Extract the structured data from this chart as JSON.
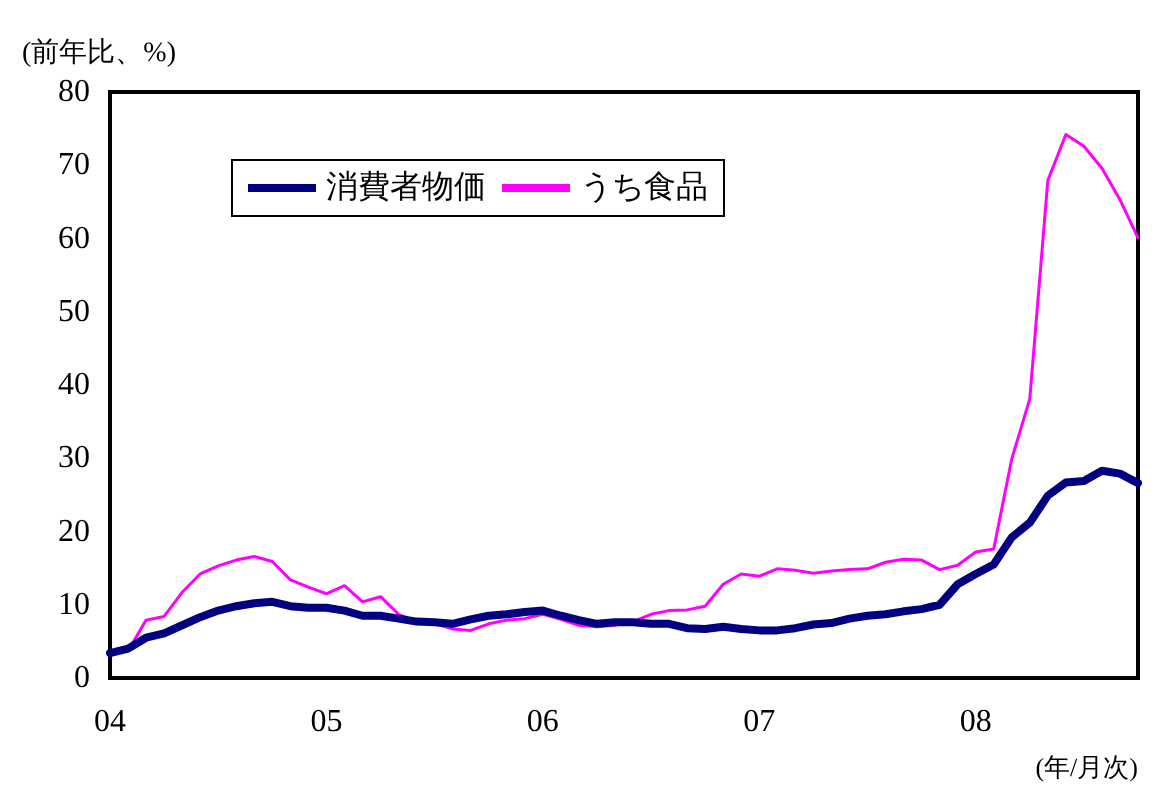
{
  "chart_data": {
    "type": "line",
    "ylabel": "(前年比、%)",
    "xlabel": "(年/月次)",
    "categories": [
      "04",
      null,
      null,
      null,
      null,
      null,
      null,
      null,
      null,
      null,
      null,
      null,
      "05",
      null,
      null,
      null,
      null,
      null,
      null,
      null,
      null,
      null,
      null,
      null,
      "06",
      null,
      null,
      null,
      null,
      null,
      null,
      null,
      null,
      null,
      null,
      null,
      "07",
      null,
      null,
      null,
      null,
      null,
      null,
      null,
      null,
      null,
      null,
      null,
      "08",
      null,
      null,
      null,
      null,
      null,
      null,
      null,
      null,
      null
    ],
    "series": [
      {
        "name": "消費者物価",
        "color": "#000080",
        "values": [
          3.4,
          4.0,
          5.5,
          6.1,
          7.2,
          8.3,
          9.2,
          9.8,
          10.2,
          10.4,
          9.8,
          9.6,
          9.6,
          9.2,
          8.5,
          8.5,
          8.1,
          7.7,
          7.6,
          7.4,
          8.0,
          8.5,
          8.7,
          9.0,
          9.2,
          8.5,
          7.9,
          7.4,
          7.6,
          7.6,
          7.4,
          7.4,
          6.8,
          6.7,
          7.0,
          6.7,
          6.5,
          6.5,
          6.8,
          7.3,
          7.5,
          8.1,
          8.5,
          8.7,
          9.1,
          9.4,
          10.0,
          12.8,
          14.2,
          15.5,
          19.2,
          21.2,
          24.9,
          26.7,
          26.9,
          28.3,
          27.9,
          26.6
        ]
      },
      {
        "name": "うち食品",
        "color": "#ff00ff",
        "values": [
          3.4,
          3.7,
          7.9,
          8.4,
          11.7,
          14.2,
          15.3,
          16.1,
          16.6,
          15.9,
          13.4,
          12.4,
          11.5,
          12.6,
          10.4,
          11.1,
          8.7,
          7.7,
          7.4,
          6.7,
          6.5,
          7.4,
          7.9,
          8.1,
          8.7,
          8.0,
          7.2,
          7.0,
          7.2,
          7.7,
          8.7,
          9.2,
          9.3,
          9.8,
          12.8,
          14.2,
          13.9,
          14.9,
          14.7,
          14.3,
          14.6,
          14.8,
          14.9,
          15.8,
          16.2,
          16.1,
          14.8,
          15.4,
          17.2,
          17.6,
          29.9,
          38.1,
          67.9,
          74.2,
          72.6,
          69.6,
          65.3,
          60.1
        ]
      }
    ],
    "ylim": [
      0,
      80
    ],
    "yticks": [
      0,
      10,
      20,
      30,
      40,
      50,
      60,
      70,
      80
    ],
    "grid": false,
    "legend": "top left",
    "marker": "none",
    "line_style": "solid"
  }
}
